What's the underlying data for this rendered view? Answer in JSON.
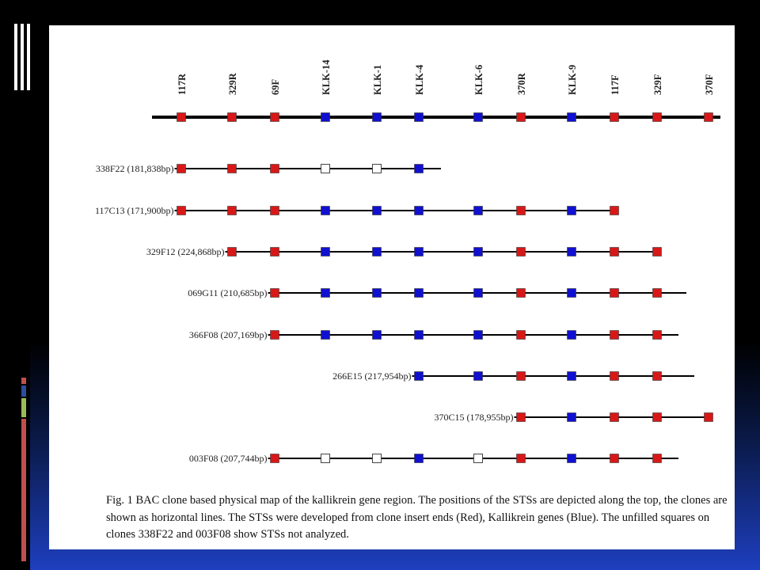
{
  "colors": {
    "insert_end": "#d81818",
    "kallikrein": "#1010d0",
    "not_analyzed": "#ffffff",
    "line": "#000000"
  },
  "stss": [
    {
      "name": "117R",
      "type": "red"
    },
    {
      "name": "329R",
      "type": "red"
    },
    {
      "name": "69F",
      "type": "red"
    },
    {
      "name": "KLK-14",
      "type": "blue"
    },
    {
      "name": "KLK-1",
      "type": "blue"
    },
    {
      "name": "KLK-4",
      "type": "blue"
    },
    {
      "name": "KLK-6",
      "type": "blue"
    },
    {
      "name": "370R",
      "type": "red"
    },
    {
      "name": "KLK-9",
      "type": "blue"
    },
    {
      "name": "117F",
      "type": "red"
    },
    {
      "name": "329F",
      "type": "red"
    },
    {
      "name": "370F",
      "type": "red"
    }
  ],
  "clones": [
    {
      "label": "338F22 (181,838bp)",
      "markers": [
        "r",
        "r",
        "r",
        "u",
        "u",
        "b"
      ]
    },
    {
      "label": "117C13 (171,900bp)",
      "markers": [
        "r",
        "r",
        "r",
        "b",
        "b",
        "b",
        "b",
        "r",
        "b",
        "r"
      ]
    },
    {
      "label": "329F12 (224,868bp)",
      "markers": [
        null,
        "r",
        "r",
        "b",
        "b",
        "b",
        "b",
        "r",
        "b",
        "r",
        "r"
      ]
    },
    {
      "label": "069G11 (210,685bp)",
      "markers": [
        null,
        null,
        "r",
        "b",
        "b",
        "b",
        "b",
        "r",
        "b",
        "r",
        "r"
      ]
    },
    {
      "label": "366F08 (207,169bp)",
      "markers": [
        null,
        null,
        "r",
        "b",
        "b",
        "b",
        "b",
        "r",
        "b",
        "r",
        "r"
      ]
    },
    {
      "label": "266E15 (217,954bp)",
      "markers": [
        null,
        null,
        null,
        null,
        null,
        "b",
        "b",
        "r",
        "b",
        "r",
        "r"
      ]
    },
    {
      "label": "370C15 (178,955bp)",
      "markers": [
        null,
        null,
        null,
        null,
        null,
        null,
        null,
        "r",
        "b",
        "r",
        "r",
        "r"
      ]
    },
    {
      "label": "003F08 (207,744bp)",
      "markers": [
        null,
        null,
        "r",
        "u",
        "u",
        "b",
        "u",
        "r",
        "b",
        "r",
        "r"
      ]
    }
  ],
  "caption": "Fig. 1 BAC clone based physical map of the kallikrein gene region. The positions of the STSs are depicted along the top, the clones are shown as horizontal lines. The STSs were developed from clone insert ends (Red), Kallikrein genes (Blue). The unfilled squares on clones 338F22 and 003F08 show STSs not analyzed."
}
